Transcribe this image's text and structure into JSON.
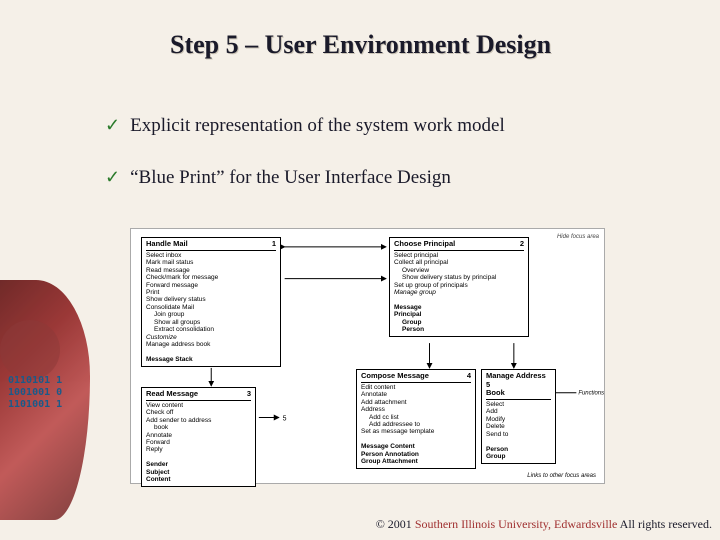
{
  "title": "Step 5 – User Environment Design",
  "bullets": [
    "Explicit representation of the system work model",
    "“Blue Print” for the User Interface Design"
  ],
  "binary": [
    "0110101 1",
    "1001001 0",
    "1101001 1"
  ],
  "diagram": {
    "header_note": "Hide focus area",
    "boxes": {
      "handle_mail": {
        "title": "Handle Mail",
        "num": "1",
        "items": [
          {
            "t": "Select inbox"
          },
          {
            "t": "Mark mail status"
          },
          {
            "t": "Read message"
          },
          {
            "t": "Check/mark for message"
          },
          {
            "t": "Forward message"
          },
          {
            "t": "Print"
          },
          {
            "t": "Show delivery status"
          },
          {
            "t": "Consolidate Mail"
          },
          {
            "t": "Join group",
            "cls": "indent"
          },
          {
            "t": "Show all groups",
            "cls": "indent"
          },
          {
            "t": "Extract consolidation",
            "cls": "indent"
          },
          {
            "t": "Customize",
            "cls": "italic"
          },
          {
            "t": "Manage address book"
          },
          {
            "t": "",
            "cls": ""
          },
          {
            "t": "Message            Stack",
            "cls": "bold"
          }
        ]
      },
      "choose_principal": {
        "title": "Choose Principal",
        "num": "2",
        "items": [
          {
            "t": "Select principal"
          },
          {
            "t": "Collect all principal"
          },
          {
            "t": "Overview",
            "cls": "indent"
          },
          {
            "t": "Show delivery status by principal",
            "cls": "indent"
          },
          {
            "t": "Set up group of principals"
          },
          {
            "t": "Manage group",
            "cls": "italic"
          },
          {
            "t": "",
            "cls": ""
          },
          {
            "t": "Message",
            "cls": "bold"
          },
          {
            "t": "Principal",
            "cls": "bold"
          },
          {
            "t": "Group",
            "cls": "bold indent"
          },
          {
            "t": "Person",
            "cls": "bold indent"
          }
        ]
      },
      "read_message": {
        "title": "Read Message",
        "num": "3",
        "items": [
          {
            "t": "View content"
          },
          {
            "t": "Check off"
          },
          {
            "t": "Add sender to address"
          },
          {
            "t": "book",
            "cls": "indent"
          },
          {
            "t": "Annotate"
          },
          {
            "t": "Forward"
          },
          {
            "t": "Reply"
          },
          {
            "t": ""
          },
          {
            "t": "Sender",
            "cls": "bold"
          },
          {
            "t": "Subject",
            "cls": "bold"
          },
          {
            "t": "Content",
            "cls": "bold"
          }
        ]
      },
      "compose_message": {
        "title": "Compose Message",
        "num": "4",
        "items": [
          {
            "t": "Edit content"
          },
          {
            "t": "Annotate"
          },
          {
            "t": "Add attachment"
          },
          {
            "t": "Address"
          },
          {
            "t": "Add cc list",
            "cls": "indent"
          },
          {
            "t": "Add addressee to",
            "cls": "indent"
          },
          {
            "t": "Set as message template"
          },
          {
            "t": ""
          },
          {
            "t": "Message   Content",
            "cls": "bold"
          },
          {
            "t": "Person     Annotation",
            "cls": "bold"
          },
          {
            "t": "Group      Attachment",
            "cls": "bold"
          }
        ]
      },
      "manage_address": {
        "title": "Manage Address 5\nBook",
        "num": "",
        "items": [
          {
            "t": "Select"
          },
          {
            "t": "Add"
          },
          {
            "t": "Modify"
          },
          {
            "t": "Delete"
          },
          {
            "t": "Send to"
          },
          {
            "t": ""
          },
          {
            "t": "Person",
            "cls": "bold"
          },
          {
            "t": "Group",
            "cls": "bold"
          }
        ]
      }
    },
    "side_labels": {
      "functions": "Functions",
      "objects_link": "Links to other focus areas"
    },
    "bottom_caption": "Links to other focus areas"
  },
  "copyright": {
    "symbol": "© 2001 ",
    "org": "Southern Illinois University, Edwardsville",
    "suffix": " All rights reserved."
  },
  "colors": {
    "background": "#f5f0e8",
    "title": "#1a1a2a",
    "check": "#2a7a2a",
    "org": "#a03030"
  }
}
